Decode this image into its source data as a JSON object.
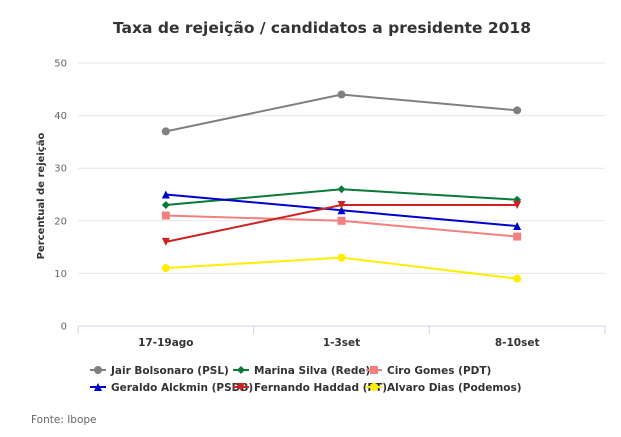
{
  "chart_data": {
    "type": "line",
    "title": "Taxa de rejeição / candidatos a presidente 2018",
    "xlabel": "",
    "ylabel": "Percentual de rejeição",
    "categories": [
      "17-19ago",
      "1-3set",
      "8-10set"
    ],
    "ylim": [
      0,
      50
    ],
    "yticks": [
      0,
      10,
      20,
      30,
      40,
      50
    ],
    "grid": true,
    "legend_position": "bottom",
    "series": [
      {
        "name": "Jair Bolsonaro (PSL)",
        "values": [
          37,
          44,
          41
        ],
        "color": "#808080",
        "marker": "circle"
      },
      {
        "name": "Marina Silva (Rede)",
        "values": [
          23,
          26,
          24
        ],
        "color": "#0a7a3a",
        "marker": "diamond"
      },
      {
        "name": "Ciro Gomes (PDT)",
        "values": [
          21,
          20,
          17
        ],
        "color": "#f28080",
        "marker": "square"
      },
      {
        "name": "Geraldo Alckmin (PSDB)",
        "values": [
          25,
          22,
          19
        ],
        "color": "#0000cc",
        "marker": "triangle"
      },
      {
        "name": "Fernando Haddad (PT)",
        "values": [
          16,
          23,
          23
        ],
        "color": "#cc2222",
        "marker": "triangle-down"
      },
      {
        "name": "Alvaro Dias (Podemos)",
        "values": [
          11,
          13,
          9
        ],
        "color": "#ffee00",
        "marker": "circle"
      }
    ]
  },
  "source": "Fonte: Ibope"
}
